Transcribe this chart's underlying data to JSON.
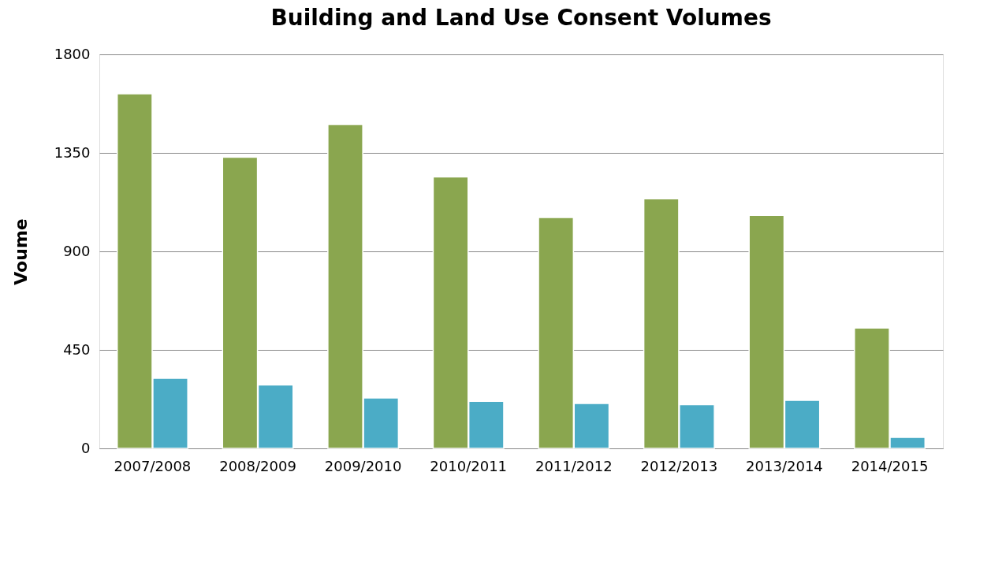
{
  "chart_data": {
    "type": "bar",
    "title": "Building and Land Use Consent Volumes",
    "ylabel": "Voume",
    "categories": [
      "2007/2008",
      "2008/2009",
      "2009/2010",
      "2010/2011",
      "2011/2012",
      "2012/2013",
      "2013/2014",
      "2014/2015"
    ],
    "series": [
      {
        "color": "#8aa64f",
        "values": [
          1620,
          1330,
          1480,
          1240,
          1055,
          1140,
          1065,
          550
        ]
      },
      {
        "color": "#4bacc6",
        "values": [
          320,
          290,
          230,
          215,
          205,
          200,
          220,
          50
        ]
      }
    ],
    "ylim": [
      0,
      1800
    ],
    "yticks": [
      0,
      450,
      900,
      1350,
      1800
    ],
    "grid": "y",
    "legend": false
  }
}
